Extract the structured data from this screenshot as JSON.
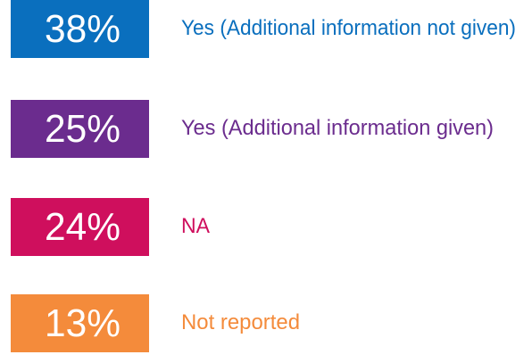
{
  "chart_data": {
    "type": "stat-list",
    "categories": [
      "Yes (Additional information not given)",
      "Yes (Additional information given)",
      "NA",
      "Not reported"
    ],
    "values": [
      38,
      25,
      24,
      13
    ],
    "value_labels": [
      "38%",
      "25%",
      "24%",
      "13%"
    ],
    "colors": [
      "#0a6fbe",
      "#6b2c8e",
      "#cf0f5d",
      "#f48b3b"
    ]
  }
}
